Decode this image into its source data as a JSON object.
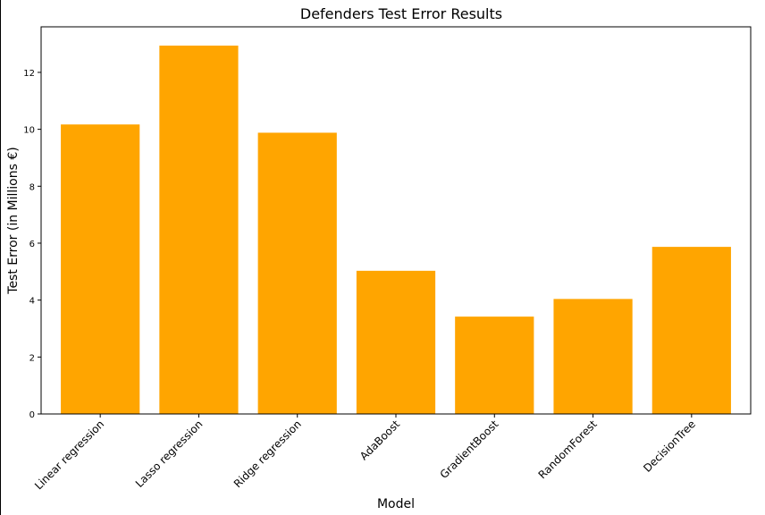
{
  "chart_data": {
    "type": "bar",
    "title": "Defenders Test Error Results",
    "xlabel": "Model",
    "ylabel": "Test Error (in Millions €)",
    "categories": [
      "Linear regression",
      "Lasso regression",
      "Ridge regression",
      "AdaBoost",
      "GradientBoost",
      "RandomForest",
      "DecisionTree"
    ],
    "values": [
      10.17,
      12.94,
      9.88,
      5.03,
      3.42,
      4.04,
      5.87
    ],
    "ylim": [
      0,
      13.6
    ],
    "yticks": [
      0,
      2,
      4,
      6,
      8,
      10,
      12
    ],
    "bar_color": "#ffa500",
    "grid": false,
    "legend": "none"
  }
}
